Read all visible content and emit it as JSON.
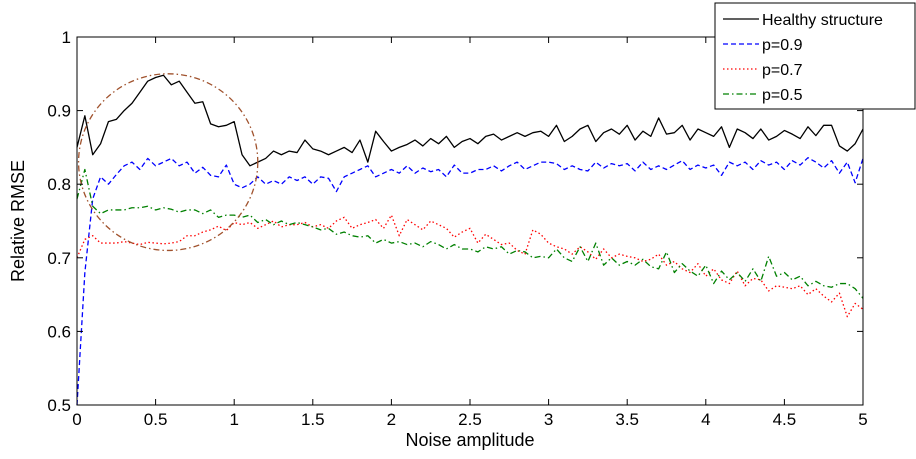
{
  "chart_data": {
    "type": "line",
    "title": "",
    "xlabel": "Noise amplitude",
    "ylabel": "Relative RMSE",
    "xlim": [
      0,
      5
    ],
    "ylim": [
      0.5,
      1
    ],
    "xticks": [
      0,
      0.5,
      1,
      1.5,
      2,
      2.5,
      3,
      3.5,
      4,
      4.5,
      5
    ],
    "xtick_labels": [
      "0",
      "0.5",
      "1",
      "1.5",
      "2",
      "2.5",
      "3",
      "3.5",
      "4",
      "4.5",
      "5"
    ],
    "yticks": [
      0.5,
      0.6,
      0.7,
      0.8,
      0.9,
      1
    ],
    "ytick_labels": [
      "0.5",
      "0.6",
      "0.7",
      "0.8",
      "0.9",
      "1"
    ],
    "grid": false,
    "legend_position": "top-right",
    "x": [
      0,
      0.05,
      0.1,
      0.15,
      0.2,
      0.25,
      0.3,
      0.35,
      0.4,
      0.45,
      0.5,
      0.55,
      0.6,
      0.65,
      0.7,
      0.75,
      0.8,
      0.85,
      0.9,
      0.95,
      1,
      1.05,
      1.1,
      1.15,
      1.2,
      1.25,
      1.3,
      1.35,
      1.4,
      1.45,
      1.5,
      1.55,
      1.6,
      1.65,
      1.7,
      1.75,
      1.8,
      1.85,
      1.9,
      1.95,
      2,
      2.05,
      2.1,
      2.15,
      2.2,
      2.25,
      2.3,
      2.35,
      2.4,
      2.45,
      2.5,
      2.55,
      2.6,
      2.65,
      2.7,
      2.75,
      2.8,
      2.85,
      2.9,
      2.95,
      3,
      3.05,
      3.1,
      3.15,
      3.2,
      3.25,
      3.3,
      3.35,
      3.4,
      3.45,
      3.5,
      3.55,
      3.6,
      3.65,
      3.7,
      3.75,
      3.8,
      3.85,
      3.9,
      3.95,
      4,
      4.05,
      4.1,
      4.15,
      4.2,
      4.25,
      4.3,
      4.35,
      4.4,
      4.45,
      4.5,
      4.55,
      4.6,
      4.65,
      4.7,
      4.75,
      4.8,
      4.85,
      4.9,
      4.95,
      5
    ],
    "series": [
      {
        "name": "Healthy structure",
        "color": "#000000",
        "dash": "solid",
        "values": [
          0.85,
          0.893,
          0.84,
          0.855,
          0.885,
          0.888,
          0.9,
          0.91,
          0.925,
          0.94,
          0.945,
          0.948,
          0.935,
          0.94,
          0.925,
          0.91,
          0.912,
          0.882,
          0.878,
          0.88,
          0.885,
          0.84,
          0.825,
          0.83,
          0.835,
          0.845,
          0.84,
          0.845,
          0.843,
          0.86,
          0.848,
          0.845,
          0.84,
          0.845,
          0.85,
          0.843,
          0.86,
          0.83,
          0.872,
          0.858,
          0.845,
          0.85,
          0.854,
          0.86,
          0.852,
          0.862,
          0.855,
          0.865,
          0.85,
          0.858,
          0.862,
          0.855,
          0.865,
          0.868,
          0.86,
          0.865,
          0.87,
          0.865,
          0.87,
          0.872,
          0.865,
          0.88,
          0.858,
          0.865,
          0.875,
          0.88,
          0.858,
          0.87,
          0.875,
          0.868,
          0.88,
          0.86,
          0.872,
          0.865,
          0.89,
          0.868,
          0.87,
          0.88,
          0.86,
          0.875,
          0.87,
          0.865,
          0.878,
          0.85,
          0.875,
          0.87,
          0.862,
          0.875,
          0.86,
          0.865,
          0.873,
          0.868,
          0.862,
          0.878,
          0.866,
          0.88,
          0.88,
          0.852,
          0.845,
          0.855,
          0.875
        ]
      },
      {
        "name": "p=0.9",
        "color": "#0000ff",
        "dash": "dashed",
        "values": [
          0.5,
          0.68,
          0.78,
          0.81,
          0.8,
          0.813,
          0.825,
          0.83,
          0.82,
          0.835,
          0.825,
          0.83,
          0.835,
          0.825,
          0.83,
          0.815,
          0.823,
          0.812,
          0.81,
          0.826,
          0.8,
          0.795,
          0.8,
          0.81,
          0.8,
          0.805,
          0.8,
          0.81,
          0.805,
          0.81,
          0.8,
          0.81,
          0.808,
          0.79,
          0.81,
          0.815,
          0.82,
          0.825,
          0.81,
          0.815,
          0.82,
          0.815,
          0.825,
          0.815,
          0.822,
          0.817,
          0.82,
          0.81,
          0.826,
          0.815,
          0.815,
          0.82,
          0.82,
          0.825,
          0.818,
          0.825,
          0.83,
          0.82,
          0.825,
          0.83,
          0.83,
          0.828,
          0.82,
          0.825,
          0.82,
          0.818,
          0.83,
          0.822,
          0.828,
          0.825,
          0.828,
          0.818,
          0.83,
          0.82,
          0.825,
          0.82,
          0.826,
          0.832,
          0.82,
          0.826,
          0.822,
          0.826,
          0.812,
          0.83,
          0.825,
          0.83,
          0.82,
          0.832,
          0.826,
          0.83,
          0.82,
          0.832,
          0.826,
          0.836,
          0.83,
          0.822,
          0.832,
          0.815,
          0.83,
          0.802,
          0.835
        ]
      },
      {
        "name": "p=0.7",
        "color": "#ff0000",
        "dash": "dotted",
        "values": [
          0.7,
          0.725,
          0.73,
          0.72,
          0.72,
          0.72,
          0.722,
          0.72,
          0.718,
          0.721,
          0.72,
          0.719,
          0.72,
          0.722,
          0.73,
          0.73,
          0.735,
          0.738,
          0.743,
          0.737,
          0.748,
          0.745,
          0.748,
          0.74,
          0.745,
          0.75,
          0.742,
          0.745,
          0.745,
          0.748,
          0.742,
          0.745,
          0.74,
          0.75,
          0.755,
          0.74,
          0.745,
          0.748,
          0.752,
          0.74,
          0.758,
          0.73,
          0.752,
          0.745,
          0.738,
          0.75,
          0.745,
          0.74,
          0.728,
          0.735,
          0.74,
          0.72,
          0.732,
          0.725,
          0.718,
          0.72,
          0.71,
          0.705,
          0.738,
          0.732,
          0.72,
          0.715,
          0.712,
          0.705,
          0.715,
          0.708,
          0.698,
          0.712,
          0.7,
          0.705,
          0.702,
          0.7,
          0.695,
          0.698,
          0.705,
          0.69,
          0.695,
          0.685,
          0.68,
          0.692,
          0.675,
          0.685,
          0.67,
          0.665,
          0.682,
          0.662,
          0.672,
          0.67,
          0.655,
          0.662,
          0.66,
          0.658,
          0.662,
          0.65,
          0.658,
          0.648,
          0.64,
          0.652,
          0.62,
          0.638,
          0.63
        ]
      },
      {
        "name": "p=0.5",
        "color": "#008000",
        "dash": "dashdot",
        "values": [
          0.78,
          0.82,
          0.77,
          0.76,
          0.765,
          0.765,
          0.765,
          0.768,
          0.768,
          0.77,
          0.765,
          0.768,
          0.766,
          0.762,
          0.765,
          0.765,
          0.76,
          0.765,
          0.755,
          0.758,
          0.758,
          0.755,
          0.758,
          0.748,
          0.752,
          0.745,
          0.75,
          0.745,
          0.748,
          0.745,
          0.742,
          0.738,
          0.74,
          0.732,
          0.735,
          0.73,
          0.728,
          0.73,
          0.72,
          0.725,
          0.72,
          0.722,
          0.718,
          0.72,
          0.715,
          0.722,
          0.718,
          0.712,
          0.718,
          0.712,
          0.712,
          0.708,
          0.715,
          0.712,
          0.715,
          0.705,
          0.71,
          0.708,
          0.7,
          0.702,
          0.7,
          0.712,
          0.7,
          0.695,
          0.715,
          0.695,
          0.72,
          0.69,
          0.7,
          0.69,
          0.695,
          0.69,
          0.698,
          0.688,
          0.685,
          0.708,
          0.68,
          0.692,
          0.682,
          0.675,
          0.69,
          0.665,
          0.682,
          0.67,
          0.68,
          0.668,
          0.685,
          0.668,
          0.702,
          0.675,
          0.68,
          0.67,
          0.675,
          0.662,
          0.668,
          0.662,
          0.66,
          0.665,
          0.665,
          0.658,
          0.645
        ]
      }
    ],
    "annotations": [
      {
        "type": "ellipse",
        "color": "#a0522d",
        "dash": "dashdot",
        "cx": 0.58,
        "cy": 0.83,
        "rx": 0.57,
        "ry": 0.12
      }
    ]
  }
}
